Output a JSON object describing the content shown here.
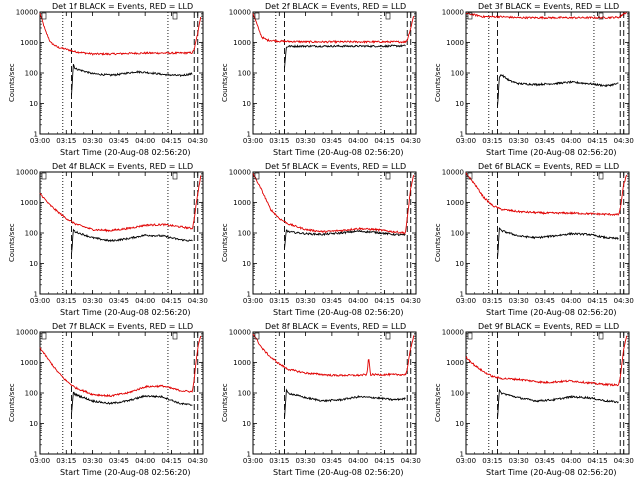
{
  "figure": {
    "colors": {
      "events": "#000000",
      "lld": "#e00000"
    }
  },
  "chart_data": [
    {
      "type": "line",
      "title": "Det 1f BLACK = Events, RED = LLD",
      "xlabel": "Start Time (20-Aug-08 02:56:20)",
      "ylabel": "Counts/sec",
      "yscale": "log",
      "ylim": [
        1,
        10000
      ],
      "xlim": [
        "03:00",
        "04:33"
      ],
      "xticks": [
        "03:00",
        "03:15",
        "03:30",
        "03:45",
        "04:00",
        "04:15",
        "04:30"
      ],
      "yticks": [
        "1",
        "10",
        "100",
        "1000",
        "10000"
      ],
      "vlines": [
        {
          "style": "dotted",
          "x": "03:13"
        },
        {
          "style": "dashed",
          "x": "03:18"
        },
        {
          "style": "dotted",
          "x": "04:13"
        },
        {
          "style": "dashed",
          "x": "04:28"
        },
        {
          "style": "dashed",
          "x": "04:30"
        }
      ],
      "series": [
        {
          "x": [
            "03:00",
            "03:03",
            "03:06",
            "03:10",
            "03:15",
            "03:20",
            "03:30",
            "03:40",
            "03:45",
            "03:50",
            "04:00",
            "04:05",
            "04:10",
            "04:20",
            "04:27",
            "04:28",
            "04:30",
            "04:32"
          ],
          "y": [
            9000,
            2500,
            1000,
            700,
            600,
            500,
            420,
            420,
            430,
            440,
            450,
            450,
            450,
            450,
            460,
            600,
            2000,
            9000
          ],
          "color": "#e00000"
        },
        {
          "x": [
            "03:18",
            "03:19",
            "03:20",
            "03:30",
            "03:40",
            "03:45",
            "03:50",
            "03:55",
            "04:00",
            "04:05",
            "04:10",
            "04:20",
            "04:27"
          ],
          "y": [
            20,
            200,
            140,
            95,
            85,
            90,
            100,
            110,
            105,
            98,
            90,
            82,
            95
          ],
          "color": "#000000"
        }
      ]
    },
    {
      "type": "line",
      "title": "Det 2f BLACK = Events, RED = LLD",
      "xlabel": "Start Time (20-Aug-08 02:56:20)",
      "ylabel": "Counts/sec",
      "yscale": "log",
      "ylim": [
        1,
        10000
      ],
      "xlim": [
        "03:00",
        "04:33"
      ],
      "xticks": [
        "03:00",
        "03:15",
        "03:30",
        "03:45",
        "04:00",
        "04:15",
        "04:30"
      ],
      "yticks": [
        "1",
        "10",
        "100",
        "1000",
        "10000"
      ],
      "vlines": [
        {
          "style": "dotted",
          "x": "03:13"
        },
        {
          "style": "dashed",
          "x": "03:18"
        },
        {
          "style": "dotted",
          "x": "04:13"
        },
        {
          "style": "dashed",
          "x": "04:28"
        },
        {
          "style": "dashed",
          "x": "04:30"
        }
      ],
      "series": [
        {
          "x": [
            "03:00",
            "03:03",
            "03:05",
            "03:08",
            "03:15",
            "03:30",
            "03:45",
            "04:00",
            "04:15",
            "04:27",
            "04:28",
            "04:30",
            "04:32"
          ],
          "y": [
            9000,
            3000,
            1500,
            1200,
            1100,
            1050,
            1050,
            1050,
            1050,
            1050,
            1200,
            3000,
            9000
          ],
          "color": "#e00000"
        },
        {
          "x": [
            "03:18",
            "03:19",
            "03:20",
            "03:30",
            "03:45",
            "04:00",
            "04:15",
            "04:27"
          ],
          "y": [
            150,
            700,
            750,
            760,
            760,
            760,
            760,
            780
          ],
          "color": "#000000"
        }
      ]
    },
    {
      "type": "line",
      "title": "Det 3f BLACK = Events, RED = LLD",
      "xlabel": "Start Time (20-Aug-08 02:56:20)",
      "ylabel": "Counts/sec",
      "yscale": "log",
      "ylim": [
        1,
        10000
      ],
      "xlim": [
        "03:00",
        "04:33"
      ],
      "xticks": [
        "03:00",
        "03:15",
        "03:30",
        "03:45",
        "04:00",
        "04:15",
        "04:30"
      ],
      "yticks": [
        "1",
        "10",
        "100",
        "1000",
        "10000"
      ],
      "vlines": [
        {
          "style": "dotted",
          "x": "03:13"
        },
        {
          "style": "dashed",
          "x": "03:18"
        },
        {
          "style": "dotted",
          "x": "04:13"
        },
        {
          "style": "dashed",
          "x": "04:28"
        },
        {
          "style": "dashed",
          "x": "04:30"
        }
      ],
      "series": [
        {
          "x": [
            "03:00",
            "03:05",
            "03:10",
            "03:15",
            "03:20",
            "03:30",
            "03:45",
            "04:00",
            "04:15",
            "04:27",
            "04:28",
            "04:30",
            "04:32"
          ],
          "y": [
            9000,
            8000,
            7000,
            7000,
            7000,
            6500,
            6500,
            6500,
            6500,
            6700,
            7000,
            9000,
            9500
          ],
          "color": "#e00000"
        },
        {
          "x": [
            "03:18",
            "03:19",
            "03:20",
            "03:25",
            "03:30",
            "03:40",
            "03:50",
            "04:00",
            "04:10",
            "04:20",
            "04:27"
          ],
          "y": [
            8,
            70,
            90,
            55,
            45,
            42,
            45,
            50,
            45,
            38,
            45
          ],
          "color": "#000000"
        }
      ]
    },
    {
      "type": "line",
      "title": "Det 4f BLACK = Events, RED = LLD",
      "xlabel": "Start Time (20-Aug-08 02:56:20)",
      "ylabel": "Counts/sec",
      "yscale": "log",
      "ylim": [
        1,
        10000
      ],
      "xlim": [
        "03:00",
        "04:33"
      ],
      "xticks": [
        "03:00",
        "03:15",
        "03:30",
        "03:45",
        "04:00",
        "04:15",
        "04:30"
      ],
      "yticks": [
        "1",
        "10",
        "100",
        "1000",
        "10000"
      ],
      "vlines": [
        {
          "style": "dotted",
          "x": "03:13"
        },
        {
          "style": "dashed",
          "x": "03:18"
        },
        {
          "style": "dotted",
          "x": "04:13"
        },
        {
          "style": "dashed",
          "x": "04:28"
        },
        {
          "style": "dashed",
          "x": "04:30"
        }
      ],
      "series": [
        {
          "x": [
            "03:00",
            "03:05",
            "03:10",
            "03:15",
            "03:20",
            "03:30",
            "03:40",
            "03:50",
            "04:00",
            "04:10",
            "04:20",
            "04:27",
            "04:28",
            "04:30",
            "04:32"
          ],
          "y": [
            2000,
            900,
            500,
            300,
            200,
            130,
            120,
            140,
            180,
            190,
            160,
            140,
            300,
            2000,
            9000
          ],
          "color": "#e00000"
        },
        {
          "x": [
            "03:18",
            "03:19",
            "03:20",
            "03:30",
            "03:40",
            "03:50",
            "04:00",
            "04:10",
            "04:20",
            "04:27"
          ],
          "y": [
            20,
            130,
            110,
            70,
            55,
            65,
            85,
            80,
            60,
            55
          ],
          "color": "#000000"
        }
      ]
    },
    {
      "type": "line",
      "title": "Det 5f BLACK = Events, RED = LLD",
      "xlabel": "Start Time (20-Aug-08 02:56:20)",
      "ylabel": "Counts/sec",
      "yscale": "log",
      "ylim": [
        1,
        10000
      ],
      "xlim": [
        "03:00",
        "04:33"
      ],
      "xticks": [
        "03:00",
        "03:15",
        "03:30",
        "03:45",
        "04:00",
        "04:15",
        "04:30"
      ],
      "yticks": [
        "1",
        "10",
        "100",
        "1000",
        "10000"
      ],
      "vlines": [
        {
          "style": "dotted",
          "x": "03:13"
        },
        {
          "style": "dashed",
          "x": "03:18"
        },
        {
          "style": "dotted",
          "x": "04:13"
        },
        {
          "style": "dashed",
          "x": "04:28"
        },
        {
          "style": "dashed",
          "x": "04:30"
        }
      ],
      "series": [
        {
          "x": [
            "03:00",
            "03:05",
            "03:10",
            "03:15",
            "03:20",
            "03:30",
            "03:40",
            "03:50",
            "04:00",
            "04:10",
            "04:20",
            "04:27",
            "04:28",
            "04:30",
            "04:32"
          ],
          "y": [
            9000,
            2500,
            600,
            300,
            200,
            130,
            110,
            120,
            140,
            130,
            110,
            100,
            300,
            3000,
            9000
          ],
          "color": "#e00000"
        },
        {
          "x": [
            "03:18",
            "03:19",
            "03:20",
            "03:30",
            "03:40",
            "03:50",
            "04:00",
            "04:10",
            "04:20",
            "04:27"
          ],
          "y": [
            30,
            130,
            110,
            95,
            90,
            100,
            115,
            105,
            90,
            85
          ],
          "color": "#000000"
        }
      ]
    },
    {
      "type": "line",
      "title": "Det 6f BLACK = Events, RED = LLD",
      "xlabel": "Start Time (20-Aug-08 02:56:20)",
      "ylabel": "Counts/sec",
      "yscale": "log",
      "ylim": [
        1,
        10000
      ],
      "xlim": [
        "03:00",
        "04:33"
      ],
      "xticks": [
        "03:00",
        "03:15",
        "03:30",
        "03:45",
        "04:00",
        "04:15",
        "04:30"
      ],
      "yticks": [
        "1",
        "10",
        "100",
        "1000",
        "10000"
      ],
      "vlines": [
        {
          "style": "dotted",
          "x": "03:13"
        },
        {
          "style": "dashed",
          "x": "03:18"
        },
        {
          "style": "dotted",
          "x": "04:13"
        },
        {
          "style": "dashed",
          "x": "04:28"
        },
        {
          "style": "dashed",
          "x": "04:30"
        }
      ],
      "series": [
        {
          "x": [
            "03:00",
            "03:05",
            "03:10",
            "03:15",
            "03:20",
            "03:30",
            "03:45",
            "04:00",
            "04:15",
            "04:27",
            "04:28",
            "04:30",
            "04:32"
          ],
          "y": [
            9000,
            4000,
            1500,
            800,
            600,
            500,
            450,
            450,
            420,
            400,
            600,
            4000,
            9000
          ],
          "color": "#e00000"
        },
        {
          "x": [
            "03:18",
            "03:19",
            "03:20",
            "03:30",
            "03:40",
            "03:50",
            "04:00",
            "04:10",
            "04:20",
            "04:27"
          ],
          "y": [
            15,
            140,
            120,
            80,
            70,
            80,
            95,
            90,
            70,
            65
          ],
          "color": "#000000"
        }
      ]
    },
    {
      "type": "line",
      "title": "Det 7f BLACK = Events, RED = LLD",
      "xlabel": "Start Time (20-Aug-08 02:56:20)",
      "ylabel": "Counts/sec",
      "yscale": "log",
      "ylim": [
        1,
        10000
      ],
      "xlim": [
        "03:00",
        "04:33"
      ],
      "xticks": [
        "03:00",
        "03:15",
        "03:30",
        "03:45",
        "04:00",
        "04:15",
        "04:30"
      ],
      "yticks": [
        "1",
        "10",
        "100",
        "1000",
        "10000"
      ],
      "vlines": [
        {
          "style": "dotted",
          "x": "03:13"
        },
        {
          "style": "dashed",
          "x": "03:18"
        },
        {
          "style": "dotted",
          "x": "04:13"
        },
        {
          "style": "dashed",
          "x": "04:28"
        },
        {
          "style": "dashed",
          "x": "04:30"
        }
      ],
      "series": [
        {
          "x": [
            "03:00",
            "03:05",
            "03:10",
            "03:15",
            "03:20",
            "03:30",
            "03:40",
            "03:50",
            "04:00",
            "04:10",
            "04:20",
            "04:27",
            "04:28",
            "04:30",
            "04:32"
          ],
          "y": [
            3000,
            1200,
            500,
            250,
            150,
            90,
            80,
            100,
            160,
            170,
            120,
            110,
            300,
            3000,
            9000
          ],
          "color": "#e00000"
        },
        {
          "x": [
            "03:18",
            "03:19",
            "03:20",
            "03:30",
            "03:40",
            "03:50",
            "04:00",
            "04:10",
            "04:20",
            "04:27"
          ],
          "y": [
            20,
            110,
            90,
            55,
            45,
            55,
            80,
            75,
            45,
            40
          ],
          "color": "#000000"
        }
      ]
    },
    {
      "type": "line",
      "title": "Det 8f BLACK = Events, RED = LLD",
      "xlabel": "Start Time (20-Aug-08 02:56:20)",
      "ylabel": "Counts/sec",
      "yscale": "log",
      "ylim": [
        1,
        10000
      ],
      "xlim": [
        "03:00",
        "04:33"
      ],
      "xticks": [
        "03:00",
        "03:15",
        "03:30",
        "03:45",
        "04:00",
        "04:15",
        "04:30"
      ],
      "yticks": [
        "1",
        "10",
        "100",
        "1000",
        "10000"
      ],
      "vlines": [
        {
          "style": "dotted",
          "x": "03:13"
        },
        {
          "style": "dashed",
          "x": "03:18"
        },
        {
          "style": "dotted",
          "x": "04:13"
        },
        {
          "style": "dashed",
          "x": "04:28"
        },
        {
          "style": "dashed",
          "x": "04:30"
        }
      ],
      "series": [
        {
          "x": [
            "03:00",
            "03:05",
            "03:10",
            "03:15",
            "03:20",
            "03:30",
            "03:45",
            "04:00",
            "04:05",
            "04:06",
            "04:07",
            "04:15",
            "04:27",
            "04:28",
            "04:30",
            "04:32"
          ],
          "y": [
            9000,
            3000,
            1500,
            900,
            600,
            450,
            380,
            380,
            400,
            1500,
            400,
            400,
            400,
            600,
            3000,
            9000
          ],
          "color": "#e00000"
        },
        {
          "x": [
            "03:18",
            "03:19",
            "03:20",
            "03:30",
            "03:40",
            "03:50",
            "04:00",
            "04:10",
            "04:20",
            "04:27"
          ],
          "y": [
            15,
            120,
            100,
            70,
            55,
            60,
            75,
            70,
            60,
            65
          ],
          "color": "#000000"
        }
      ]
    },
    {
      "type": "line",
      "title": "Det 9f BLACK = Events, RED = LLD",
      "xlabel": "Start Time (20-Aug-08 02:56:20)",
      "ylabel": "Counts/sec",
      "yscale": "log",
      "ylim": [
        1,
        10000
      ],
      "xlim": [
        "03:00",
        "04:33"
      ],
      "xticks": [
        "03:00",
        "03:15",
        "03:30",
        "03:45",
        "04:00",
        "04:15",
        "04:30"
      ],
      "yticks": [
        "1",
        "10",
        "100",
        "1000",
        "10000"
      ],
      "vlines": [
        {
          "style": "dotted",
          "x": "03:13"
        },
        {
          "style": "dashed",
          "x": "03:18"
        },
        {
          "style": "dotted",
          "x": "04:13"
        },
        {
          "style": "dashed",
          "x": "04:28"
        },
        {
          "style": "dashed",
          "x": "04:30"
        }
      ],
      "series": [
        {
          "x": [
            "03:00",
            "03:05",
            "03:10",
            "03:15",
            "03:20",
            "03:30",
            "03:45",
            "04:00",
            "04:15",
            "04:27",
            "04:28",
            "04:30",
            "04:32"
          ],
          "y": [
            1500,
            800,
            500,
            350,
            300,
            280,
            220,
            250,
            200,
            180,
            300,
            3000,
            9000
          ],
          "color": "#e00000"
        },
        {
          "x": [
            "03:18",
            "03:19",
            "03:20",
            "03:30",
            "03:40",
            "03:50",
            "04:00",
            "04:10",
            "04:20",
            "04:27"
          ],
          "y": [
            15,
            120,
            100,
            70,
            55,
            60,
            75,
            70,
            55,
            50
          ],
          "color": "#000000"
        }
      ]
    }
  ]
}
